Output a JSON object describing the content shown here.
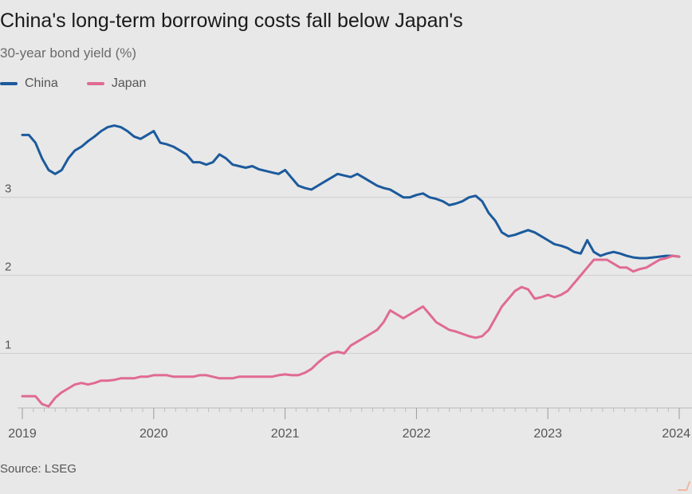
{
  "title": "China's long-term borrowing costs fall below Japan's",
  "subtitle": "30-year bond yield (%)",
  "source": "Source: LSEG",
  "colors": {
    "china": "#1c5a9c",
    "japan": "#e06b92",
    "background": "#e8e8e8",
    "grid": "#cfcfcf"
  },
  "legend": [
    {
      "name": "China",
      "color": "#1c5a9c"
    },
    {
      "name": "Japan",
      "color": "#e06b92"
    }
  ],
  "chart_data": {
    "type": "line",
    "title": "China's long-term borrowing costs fall below Japan's",
    "ylabel": "30-year bond yield (%)",
    "xlabel": "",
    "xlim": [
      2019.0,
      2024.0
    ],
    "ylim": [
      0.3,
      4.1
    ],
    "yticks": [
      1,
      2,
      3
    ],
    "xticks": [
      2019,
      2020,
      2021,
      2022,
      2023,
      2024
    ],
    "xtick_labels": [
      "2019",
      "2020",
      "2021",
      "2022",
      "2023",
      "2024"
    ],
    "grid": true,
    "legend_position": "top-left",
    "series": [
      {
        "name": "China",
        "color": "#1c5a9c",
        "x": [
          2019.0,
          2019.05,
          2019.1,
          2019.15,
          2019.2,
          2019.25,
          2019.3,
          2019.35,
          2019.4,
          2019.45,
          2019.5,
          2019.55,
          2019.6,
          2019.65,
          2019.7,
          2019.75,
          2019.8,
          2019.85,
          2019.9,
          2019.95,
          2020.0,
          2020.05,
          2020.1,
          2020.15,
          2020.2,
          2020.25,
          2020.3,
          2020.35,
          2020.4,
          2020.45,
          2020.5,
          2020.55,
          2020.6,
          2020.65,
          2020.7,
          2020.75,
          2020.8,
          2020.85,
          2020.9,
          2020.95,
          2021.0,
          2021.05,
          2021.1,
          2021.15,
          2021.2,
          2021.25,
          2021.3,
          2021.35,
          2021.4,
          2021.45,
          2021.5,
          2021.55,
          2021.6,
          2021.65,
          2021.7,
          2021.75,
          2021.8,
          2021.85,
          2021.9,
          2021.95,
          2022.0,
          2022.05,
          2022.1,
          2022.15,
          2022.2,
          2022.25,
          2022.3,
          2022.35,
          2022.4,
          2022.45,
          2022.5,
          2022.55,
          2022.6,
          2022.65,
          2022.7,
          2022.75,
          2022.8,
          2022.85,
          2022.9,
          2022.95,
          2023.0,
          2023.05,
          2023.1,
          2023.15,
          2023.2,
          2023.25,
          2023.3,
          2023.35,
          2023.4,
          2023.45,
          2023.5,
          2023.55,
          2023.6,
          2023.65,
          2023.7,
          2023.75,
          2023.8,
          2023.85,
          2023.9,
          2023.95,
          2024.0
        ],
        "values": [
          3.8,
          3.8,
          3.7,
          3.5,
          3.35,
          3.3,
          3.35,
          3.5,
          3.6,
          3.65,
          3.72,
          3.78,
          3.85,
          3.9,
          3.92,
          3.9,
          3.85,
          3.78,
          3.75,
          3.8,
          3.85,
          3.7,
          3.68,
          3.65,
          3.6,
          3.55,
          3.45,
          3.45,
          3.42,
          3.45,
          3.55,
          3.5,
          3.42,
          3.4,
          3.38,
          3.4,
          3.36,
          3.34,
          3.32,
          3.3,
          3.35,
          3.25,
          3.15,
          3.12,
          3.1,
          3.15,
          3.2,
          3.25,
          3.3,
          3.28,
          3.26,
          3.3,
          3.25,
          3.2,
          3.15,
          3.12,
          3.1,
          3.05,
          3.0,
          3.0,
          3.03,
          3.05,
          3.0,
          2.98,
          2.95,
          2.9,
          2.92,
          2.95,
          3.0,
          3.02,
          2.95,
          2.8,
          2.7,
          2.55,
          2.5,
          2.52,
          2.55,
          2.58,
          2.55,
          2.5,
          2.45,
          2.4,
          2.38,
          2.35,
          2.3,
          2.28,
          2.45,
          2.3,
          2.25,
          2.28,
          2.3,
          2.28,
          2.25,
          2.23,
          2.22,
          2.22,
          2.23,
          2.24,
          2.25,
          2.25,
          2.24
        ]
      },
      {
        "name": "Japan",
        "color": "#e06b92",
        "x": [
          2019.0,
          2019.05,
          2019.1,
          2019.15,
          2019.2,
          2019.25,
          2019.3,
          2019.35,
          2019.4,
          2019.45,
          2019.5,
          2019.55,
          2019.6,
          2019.65,
          2019.7,
          2019.75,
          2019.8,
          2019.85,
          2019.9,
          2019.95,
          2020.0,
          2020.05,
          2020.1,
          2020.15,
          2020.2,
          2020.25,
          2020.3,
          2020.35,
          2020.4,
          2020.45,
          2020.5,
          2020.55,
          2020.6,
          2020.65,
          2020.7,
          2020.75,
          2020.8,
          2020.85,
          2020.9,
          2020.95,
          2021.0,
          2021.05,
          2021.1,
          2021.15,
          2021.2,
          2021.25,
          2021.3,
          2021.35,
          2021.4,
          2021.45,
          2021.5,
          2021.55,
          2021.6,
          2021.65,
          2021.7,
          2021.75,
          2021.8,
          2021.85,
          2021.9,
          2021.95,
          2022.0,
          2022.05,
          2022.1,
          2022.15,
          2022.2,
          2022.25,
          2022.3,
          2022.35,
          2022.4,
          2022.45,
          2022.5,
          2022.55,
          2022.6,
          2022.65,
          2022.7,
          2022.75,
          2022.8,
          2022.85,
          2022.9,
          2022.95,
          2023.0,
          2023.05,
          2023.1,
          2023.15,
          2023.2,
          2023.25,
          2023.3,
          2023.35,
          2023.4,
          2023.45,
          2023.5,
          2023.55,
          2023.6,
          2023.65,
          2023.7,
          2023.75,
          2023.8,
          2023.85,
          2023.9,
          2023.95,
          2024.0
        ],
        "values": [
          0.45,
          0.45,
          0.45,
          0.35,
          0.32,
          0.43,
          0.5,
          0.55,
          0.6,
          0.62,
          0.6,
          0.62,
          0.65,
          0.65,
          0.66,
          0.68,
          0.68,
          0.68,
          0.7,
          0.7,
          0.72,
          0.72,
          0.72,
          0.7,
          0.7,
          0.7,
          0.7,
          0.72,
          0.72,
          0.7,
          0.68,
          0.68,
          0.68,
          0.7,
          0.7,
          0.7,
          0.7,
          0.7,
          0.7,
          0.72,
          0.73,
          0.72,
          0.72,
          0.75,
          0.8,
          0.88,
          0.95,
          1.0,
          1.02,
          1.0,
          1.1,
          1.15,
          1.2,
          1.25,
          1.3,
          1.4,
          1.55,
          1.5,
          1.45,
          1.5,
          1.55,
          1.6,
          1.5,
          1.4,
          1.35,
          1.3,
          1.28,
          1.25,
          1.22,
          1.2,
          1.22,
          1.3,
          1.45,
          1.6,
          1.7,
          1.8,
          1.85,
          1.82,
          1.7,
          1.72,
          1.75,
          1.72,
          1.75,
          1.8,
          1.9,
          2.0,
          2.1,
          2.2,
          2.2,
          2.2,
          2.15,
          2.1,
          2.1,
          2.05,
          2.08,
          2.1,
          2.15,
          2.2,
          2.22,
          2.25,
          2.24
        ]
      }
    ]
  }
}
